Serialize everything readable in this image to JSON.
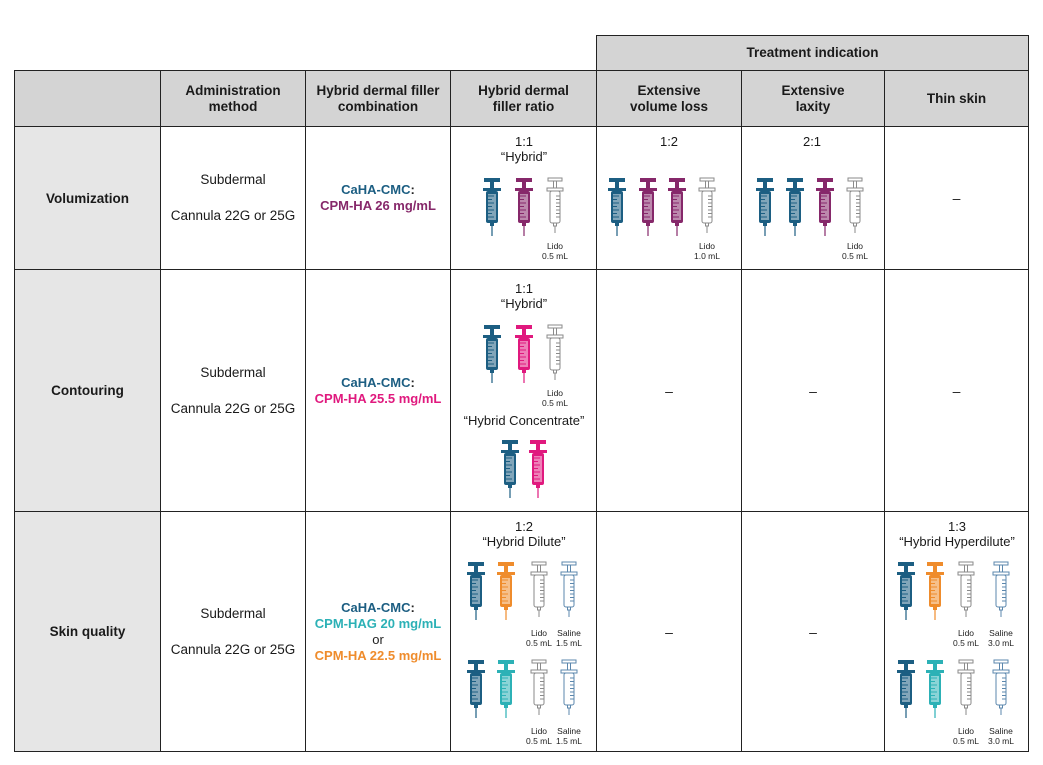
{
  "header": {
    "group": "Treatment indication",
    "columns": {
      "method": "Administration method",
      "combo": "Hybrid dermal filler combination",
      "ratio": "Hybrid dermal filler ratio",
      "volume": "Extensive volume loss",
      "laxity": "Extensive laxity",
      "thin": "Thin skin"
    }
  },
  "rows": {
    "volumization": {
      "label": "Volumization",
      "method": "Subdermal",
      "cannula": "Cannula 22G or 25G",
      "combo_a": "CaHA-CMC",
      "combo_b": "CPM-HA 26 mg/mL",
      "ratio_val": "1:1",
      "ratio_name": "“Hybrid”",
      "ratio_lido": "Lido",
      "ratio_lido_vol": "0.5 mL",
      "volume_val": "1:2",
      "volume_lido": "Lido",
      "volume_lido_vol": "1.0 mL",
      "laxity_val": "2:1",
      "laxity_lido": "Lido",
      "laxity_lido_vol": "0.5 mL",
      "thin": "–"
    },
    "contouring": {
      "label": "Contouring",
      "method": "Subdermal",
      "cannula": "Cannula 22G or 25G",
      "combo_a": "CaHA-CMC",
      "combo_b": "CPM-HA 25.5 mg/mL",
      "ratio_val": "1:1",
      "ratio_name": "“Hybrid”",
      "ratio_lido": "Lido",
      "ratio_lido_vol": "0.5 mL",
      "ratio_name2": "“Hybrid Concentrate”",
      "volume": "–",
      "laxity": "–",
      "thin": "–"
    },
    "skin_quality": {
      "label": "Skin quality",
      "method": "Subdermal",
      "cannula": "Cannula 22G or 25G",
      "combo_a": "CaHA-CMC",
      "combo_b": "CPM-HAG 20 mg/mL",
      "combo_or": "or",
      "combo_c": "CPM-HA 22.5 mg/mL",
      "ratio_val": "1:2",
      "ratio_name": "“Hybrid Dilute”",
      "ratio_lido": "Lido",
      "ratio_lido_vol": "0.5 mL",
      "ratio_saline": "Saline",
      "ratio_saline_vol": "1.5 mL",
      "volume": "–",
      "laxity": "–",
      "thin_val": "1:3",
      "thin_name": "“Hybrid Hyperdilute”",
      "thin_lido": "Lido",
      "thin_lido_vol": "0.5 mL",
      "thin_saline": "Saline",
      "thin_saline_vol": "3.0 mL"
    }
  },
  "colors": {
    "cahacmc": "#1c5e82",
    "cpmha26": "#86286a",
    "cpmha255": "#e0197e",
    "cpmhag20": "#2cb1b6",
    "cpmha225": "#ef8c2c",
    "lido": "#8a8a8a",
    "saline": "#5b87ad"
  },
  "icons": [
    "syringe-icon"
  ]
}
